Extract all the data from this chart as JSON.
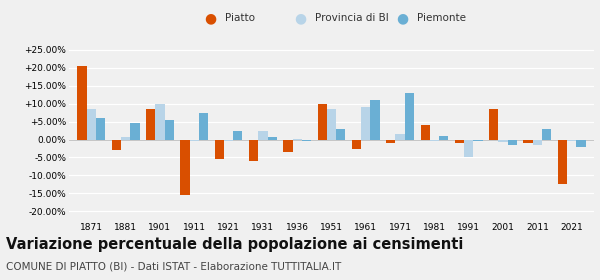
{
  "years": [
    1871,
    1881,
    1901,
    1911,
    1921,
    1931,
    1936,
    1951,
    1961,
    1971,
    1981,
    1991,
    2001,
    2011,
    2021
  ],
  "piatto": [
    20.5,
    -3.0,
    8.5,
    -15.5,
    -5.5,
    -6.0,
    -3.5,
    10.0,
    -2.5,
    -1.0,
    4.0,
    -1.0,
    8.5,
    -1.0,
    -12.5
  ],
  "provincia_bi": [
    8.5,
    0.8,
    10.0,
    -0.5,
    -0.5,
    2.5,
    0.2,
    8.5,
    9.0,
    1.5,
    -0.5,
    -5.0,
    -0.8,
    -1.5,
    -0.5
  ],
  "piemonte": [
    6.0,
    4.5,
    5.5,
    7.5,
    2.5,
    0.8,
    -0.5,
    3.0,
    11.0,
    13.0,
    1.0,
    -0.5,
    -1.5,
    3.0,
    -2.0
  ],
  "color_piatto": "#d94f00",
  "color_provincia": "#b8d4e8",
  "color_piemonte": "#6aafd4",
  "title": "Variazione percentuale della popolazione ai censimenti",
  "subtitle": "COMUNE DI PIATTO (BI) - Dati ISTAT - Elaborazione TUTTITALIA.IT",
  "legend_labels": [
    "Piatto",
    "Provincia di BI",
    "Piemonte"
  ],
  "ylim": [
    -22,
    28
  ],
  "yticks": [
    -20,
    -15,
    -10,
    -5,
    0,
    5,
    10,
    15,
    20,
    25
  ],
  "yticklabels": [
    "-20.00%",
    "-15.00%",
    "-10.00%",
    "-5.00%",
    "0.00%",
    "+5.00%",
    "+10.00%",
    "+15.00%",
    "+20.00%",
    "+25.00%"
  ],
  "bar_width": 0.27,
  "background_color": "#f0f0f0",
  "grid_color": "#ffffff",
  "title_fontsize": 10.5,
  "subtitle_fontsize": 7.5,
  "tick_fontsize": 6.5
}
